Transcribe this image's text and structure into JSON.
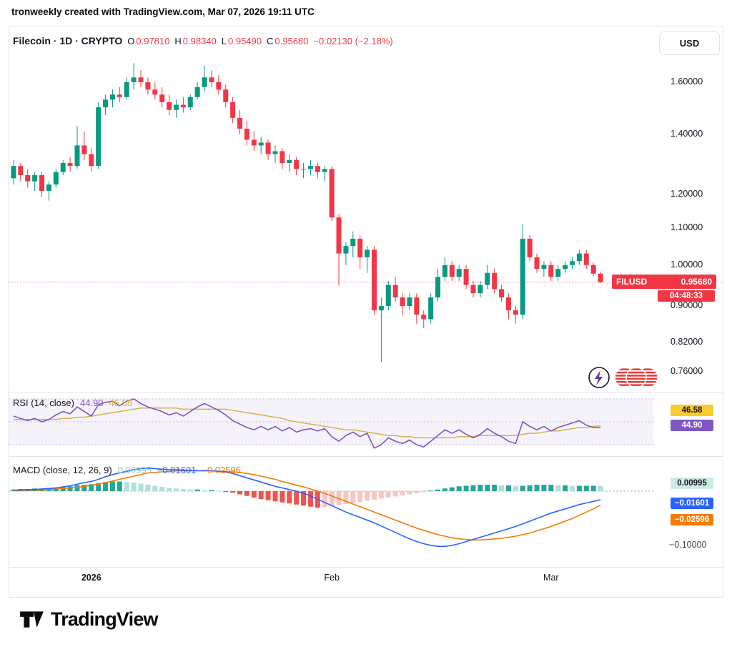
{
  "page": {
    "attribution": "tronweekly created with TradingView.com, Mar 07, 2026 19:11 UTC"
  },
  "symbol_bar": {
    "title": "Filecoin · 1D · CRYPTO",
    "o_label": "O",
    "o": "0.97810",
    "h_label": "H",
    "h": "0.98340",
    "l_label": "L",
    "l": "0.95490",
    "c_label": "C",
    "c": "0.95680",
    "change": "−0.02130 (−2.18%)",
    "currency": "USD"
  },
  "price_scale": {
    "ticks": [
      "1.60000",
      "1.40000",
      "1.20000",
      "1.10000",
      "1.00000",
      "0.90000",
      "0.82000",
      "0.76000"
    ]
  },
  "price_tag": {
    "symbol": "FILUSD",
    "price": "0.95680",
    "countdown": "04:48:33"
  },
  "rsi": {
    "title": "RSI (14, close)",
    "value": "44.90",
    "ma_value": "46.58"
  },
  "macd": {
    "title": "MACD (close, 12, 26, 9)",
    "hist_value": "0.00995",
    "macd_value": "−0.01601",
    "signal_value": "−0.02596",
    "axis_label": "−0.10000"
  },
  "footer": {
    "brand": "TradingView"
  },
  "colors": {
    "up": "#089981",
    "down": "#f23645",
    "rsi_line": "#7e57c2",
    "rsi_ma": "#d9b34a",
    "rsi_ma_tag": "#f8cb2e",
    "rsi_band_fill": "rgba(126,87,194,0.08)",
    "rsi_band_line": "rgba(126,87,194,0.45)",
    "macd_line": "#2962ff",
    "signal_line": "#f57c00",
    "hist_up_strong": "#26a69a",
    "hist_up_weak": "#b2dfdb",
    "hist_dn_strong": "#ef5350",
    "hist_dn_weak": "#fbc4c4",
    "hist_tag": "#cce9e4",
    "grid_border": "#e0e3eb"
  },
  "chart_data": {
    "type": "candlestick+indicators",
    "symbol": "FILUSD",
    "interval": "1D",
    "price_scale_type": "log",
    "price_axis_ticks": [
      1.6,
      1.4,
      1.2,
      1.1,
      1.0,
      0.9,
      0.82,
      0.76
    ],
    "last_ohlc": {
      "o": 0.9781,
      "h": 0.9834,
      "l": 0.9549,
      "c": 0.9568,
      "change": -0.0213,
      "change_pct": -2.18
    },
    "x_labels": [
      {
        "text": "2026",
        "candle_index": 11,
        "major": true
      },
      {
        "text": "Feb",
        "candle_index": 45,
        "major": false
      },
      {
        "text": "Mar",
        "candle_index": 76,
        "major": false
      }
    ],
    "candles": [
      [
        1.25,
        1.31,
        1.23,
        1.29
      ],
      [
        1.29,
        1.3,
        1.24,
        1.26
      ],
      [
        1.26,
        1.28,
        1.22,
        1.24
      ],
      [
        1.24,
        1.27,
        1.21,
        1.26
      ],
      [
        1.26,
        1.27,
        1.19,
        1.21
      ],
      [
        1.21,
        1.24,
        1.18,
        1.23
      ],
      [
        1.23,
        1.28,
        1.22,
        1.27
      ],
      [
        1.27,
        1.31,
        1.26,
        1.3
      ],
      [
        1.3,
        1.32,
        1.27,
        1.29
      ],
      [
        1.29,
        1.43,
        1.28,
        1.36
      ],
      [
        1.36,
        1.41,
        1.31,
        1.33
      ],
      [
        1.33,
        1.35,
        1.27,
        1.29
      ],
      [
        1.29,
        1.52,
        1.28,
        1.5
      ],
      [
        1.5,
        1.55,
        1.47,
        1.53
      ],
      [
        1.53,
        1.57,
        1.5,
        1.55
      ],
      [
        1.55,
        1.58,
        1.52,
        1.54
      ],
      [
        1.54,
        1.62,
        1.53,
        1.6
      ],
      [
        1.6,
        1.68,
        1.57,
        1.62
      ],
      [
        1.62,
        1.65,
        1.58,
        1.6
      ],
      [
        1.6,
        1.62,
        1.55,
        1.57
      ],
      [
        1.57,
        1.6,
        1.53,
        1.55
      ],
      [
        1.55,
        1.58,
        1.5,
        1.52
      ],
      [
        1.52,
        1.55,
        1.47,
        1.49
      ],
      [
        1.49,
        1.53,
        1.46,
        1.51
      ],
      [
        1.51,
        1.54,
        1.48,
        1.5
      ],
      [
        1.5,
        1.55,
        1.49,
        1.54
      ],
      [
        1.54,
        1.6,
        1.53,
        1.58
      ],
      [
        1.58,
        1.67,
        1.56,
        1.62
      ],
      [
        1.62,
        1.65,
        1.58,
        1.6
      ],
      [
        1.6,
        1.63,
        1.55,
        1.57
      ],
      [
        1.57,
        1.59,
        1.5,
        1.52
      ],
      [
        1.52,
        1.54,
        1.44,
        1.46
      ],
      [
        1.46,
        1.49,
        1.4,
        1.42
      ],
      [
        1.42,
        1.45,
        1.36,
        1.38
      ],
      [
        1.38,
        1.41,
        1.34,
        1.36
      ],
      [
        1.36,
        1.39,
        1.33,
        1.37
      ],
      [
        1.37,
        1.38,
        1.31,
        1.33
      ],
      [
        1.33,
        1.36,
        1.3,
        1.34
      ],
      [
        1.34,
        1.35,
        1.28,
        1.3
      ],
      [
        1.3,
        1.33,
        1.27,
        1.31
      ],
      [
        1.31,
        1.32,
        1.26,
        1.28
      ],
      [
        1.28,
        1.3,
        1.25,
        1.28
      ],
      [
        1.28,
        1.31,
        1.26,
        1.29
      ],
      [
        1.29,
        1.3,
        1.25,
        1.27
      ],
      [
        1.27,
        1.29,
        1.24,
        1.28
      ],
      [
        1.28,
        1.29,
        1.12,
        1.13
      ],
      [
        1.13,
        1.14,
        0.95,
        1.03
      ],
      [
        1.03,
        1.06,
        1.0,
        1.05
      ],
      [
        1.05,
        1.09,
        1.02,
        1.07
      ],
      [
        1.07,
        1.08,
        0.99,
        1.02
      ],
      [
        1.02,
        1.05,
        0.98,
        1.04
      ],
      [
        1.04,
        1.05,
        0.88,
        0.89
      ],
      [
        0.89,
        0.92,
        0.78,
        0.9
      ],
      [
        0.9,
        0.96,
        0.89,
        0.95
      ],
      [
        0.95,
        0.97,
        0.91,
        0.92
      ],
      [
        0.92,
        0.93,
        0.88,
        0.9
      ],
      [
        0.9,
        0.93,
        0.89,
        0.92
      ],
      [
        0.92,
        0.93,
        0.86,
        0.88
      ],
      [
        0.88,
        0.89,
        0.85,
        0.87
      ],
      [
        0.87,
        0.93,
        0.86,
        0.92
      ],
      [
        0.92,
        0.99,
        0.91,
        0.97
      ],
      [
        0.97,
        1.02,
        0.96,
        1.0
      ],
      [
        1.0,
        1.01,
        0.96,
        0.97
      ],
      [
        0.97,
        1.0,
        0.96,
        0.99
      ],
      [
        0.99,
        1.0,
        0.94,
        0.95
      ],
      [
        0.95,
        0.96,
        0.92,
        0.93
      ],
      [
        0.93,
        0.96,
        0.92,
        0.95
      ],
      [
        0.95,
        1.0,
        0.94,
        0.98
      ],
      [
        0.98,
        0.99,
        0.93,
        0.94
      ],
      [
        0.94,
        0.95,
        0.91,
        0.92
      ],
      [
        0.92,
        0.93,
        0.87,
        0.89
      ],
      [
        0.89,
        0.9,
        0.86,
        0.88
      ],
      [
        0.88,
        1.11,
        0.87,
        1.07
      ],
      [
        1.07,
        1.08,
        1.01,
        1.02
      ],
      [
        1.02,
        1.03,
        0.98,
        0.99
      ],
      [
        0.99,
        1.01,
        0.97,
        1.0
      ],
      [
        1.0,
        1.01,
        0.96,
        0.97
      ],
      [
        0.97,
        1.0,
        0.96,
        0.99
      ],
      [
        0.99,
        1.01,
        0.98,
        1.0
      ],
      [
        1.0,
        1.02,
        0.99,
        1.01
      ],
      [
        1.01,
        1.04,
        1.0,
        1.03
      ],
      [
        1.03,
        1.04,
        0.99,
        1.0
      ],
      [
        1.0,
        1.005,
        0.972,
        0.978
      ],
      [
        0.9781,
        0.9834,
        0.9549,
        0.9568
      ]
    ],
    "rsi": {
      "period": 14,
      "source": "close",
      "bands": [
        70,
        50,
        30
      ],
      "last": 44.9,
      "ma_last": 46.58,
      "values": [
        55,
        53,
        51,
        53,
        50,
        52,
        56,
        59,
        57,
        63,
        59,
        55,
        65,
        67,
        68,
        64,
        68,
        70,
        66,
        63,
        61,
        59,
        56,
        58,
        55,
        59,
        63,
        66,
        63,
        60,
        56,
        51,
        48,
        45,
        43,
        46,
        43,
        46,
        42,
        45,
        41,
        43,
        44,
        42,
        44,
        37,
        33,
        38,
        41,
        37,
        40,
        27,
        30,
        36,
        33,
        31,
        34,
        30,
        28,
        33,
        38,
        43,
        40,
        43,
        39,
        36,
        39,
        44,
        40,
        37,
        33,
        31,
        50,
        46,
        43,
        46,
        42,
        45,
        47,
        49,
        51,
        47,
        45,
        44.9
      ],
      "ma": [
        52,
        52,
        52,
        52,
        52,
        52,
        52,
        53,
        53,
        54,
        54,
        55,
        56,
        57,
        58,
        59,
        60,
        61,
        62,
        62,
        62,
        62,
        62,
        62,
        61,
        61,
        61,
        61,
        61,
        61,
        61,
        60,
        59,
        58,
        57,
        56,
        55,
        54,
        53,
        51,
        50,
        49,
        48,
        47,
        46,
        45,
        44,
        43,
        43,
        42,
        41,
        40,
        39,
        38,
        38,
        37,
        37,
        36,
        36,
        36,
        36,
        36,
        36,
        37,
        37,
        37,
        38,
        38,
        38,
        38,
        38,
        38,
        39,
        40,
        40,
        41,
        42,
        42,
        43,
        44,
        45,
        45,
        46,
        46.58
      ]
    },
    "macd": {
      "fast": 12,
      "slow": 26,
      "signal_period": 9,
      "source": "close",
      "last": {
        "hist": 0.00995,
        "macd": -0.01601,
        "signal": -0.02596
      },
      "axis_min_label": -0.1,
      "macd": [
        0.002,
        0.002,
        0.003,
        0.003,
        0.004,
        0.005,
        0.006,
        0.008,
        0.01,
        0.013,
        0.016,
        0.018,
        0.022,
        0.027,
        0.031,
        0.034,
        0.037,
        0.04,
        0.042,
        0.043,
        0.042,
        0.041,
        0.04,
        0.04,
        0.039,
        0.039,
        0.038,
        0.038,
        0.038,
        0.037,
        0.036,
        0.033,
        0.029,
        0.025,
        0.021,
        0.017,
        0.013,
        0.009,
        0.006,
        0.003,
        0.0,
        -0.004,
        -0.009,
        -0.015,
        -0.021,
        -0.027,
        -0.033,
        -0.039,
        -0.044,
        -0.049,
        -0.054,
        -0.059,
        -0.065,
        -0.071,
        -0.077,
        -0.083,
        -0.089,
        -0.094,
        -0.098,
        -0.101,
        -0.103,
        -0.103,
        -0.101,
        -0.098,
        -0.094,
        -0.09,
        -0.086,
        -0.082,
        -0.078,
        -0.074,
        -0.07,
        -0.066,
        -0.061,
        -0.056,
        -0.051,
        -0.046,
        -0.041,
        -0.037,
        -0.033,
        -0.029,
        -0.025,
        -0.022,
        -0.019,
        -0.01601
      ],
      "signal": [
        0.001,
        0.001,
        0.002,
        0.002,
        0.002,
        0.003,
        0.004,
        0.005,
        0.006,
        0.007,
        0.009,
        0.011,
        0.013,
        0.016,
        0.019,
        0.022,
        0.025,
        0.028,
        0.031,
        0.034,
        0.035,
        0.036,
        0.037,
        0.038,
        0.038,
        0.038,
        0.038,
        0.038,
        0.038,
        0.037,
        0.037,
        0.036,
        0.035,
        0.033,
        0.031,
        0.028,
        0.025,
        0.022,
        0.018,
        0.015,
        0.011,
        0.008,
        0.004,
        0.0,
        -0.004,
        -0.009,
        -0.014,
        -0.019,
        -0.024,
        -0.029,
        -0.034,
        -0.039,
        -0.044,
        -0.049,
        -0.054,
        -0.059,
        -0.064,
        -0.069,
        -0.073,
        -0.077,
        -0.081,
        -0.084,
        -0.087,
        -0.089,
        -0.09,
        -0.091,
        -0.091,
        -0.09,
        -0.089,
        -0.088,
        -0.086,
        -0.084,
        -0.081,
        -0.078,
        -0.074,
        -0.07,
        -0.066,
        -0.061,
        -0.056,
        -0.051,
        -0.045,
        -0.039,
        -0.033,
        -0.02596
      ],
      "hist": [
        0.003,
        0.004,
        0.004,
        0.005,
        0.005,
        0.006,
        0.007,
        0.008,
        0.009,
        0.011,
        0.012,
        0.013,
        0.015,
        0.017,
        0.018,
        0.018,
        0.017,
        0.016,
        0.014,
        0.012,
        0.01,
        0.008,
        0.006,
        0.005,
        0.004,
        0.003,
        0.003,
        0.002,
        0.002,
        0.001,
        -0.001,
        -0.003,
        -0.006,
        -0.009,
        -0.012,
        -0.015,
        -0.017,
        -0.019,
        -0.021,
        -0.023,
        -0.025,
        -0.027,
        -0.029,
        -0.031,
        -0.03,
        -0.028,
        -0.026,
        -0.024,
        -0.022,
        -0.02,
        -0.018,
        -0.016,
        -0.014,
        -0.012,
        -0.01,
        -0.008,
        -0.006,
        -0.004,
        -0.002,
        0.001,
        0.003,
        0.005,
        0.007,
        0.009,
        0.01,
        0.011,
        0.012,
        0.012,
        0.012,
        0.011,
        0.011,
        0.01,
        0.01,
        0.011,
        0.012,
        0.012,
        0.012,
        0.011,
        0.011,
        0.01,
        0.01,
        0.01,
        0.01,
        0.00995
      ]
    }
  }
}
